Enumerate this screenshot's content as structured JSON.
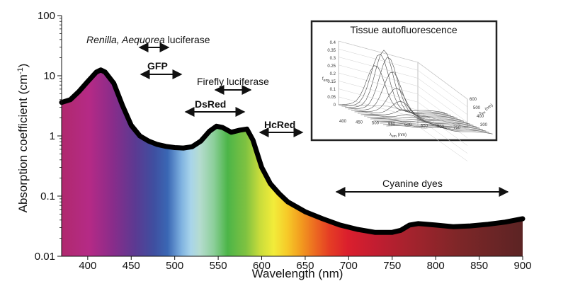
{
  "chart_data": {
    "type": "line",
    "xlabel": "Wavelength (nm)",
    "ylabel": "Absorption coefficient (cm",
    "ylabel_sup": "-1",
    "ylabel_tail": ")",
    "xlim": [
      370,
      900
    ],
    "ylim": [
      0.01,
      100
    ],
    "yscale": "log",
    "x_ticks": [
      400,
      450,
      500,
      550,
      600,
      650,
      700,
      750,
      800,
      850,
      900
    ],
    "y_ticks": [
      {
        "value": 0.01,
        "label": "0.01"
      },
      {
        "value": 0.1,
        "label": "0.1"
      },
      {
        "value": 1,
        "label": "1"
      },
      {
        "value": 10,
        "label": "10"
      },
      {
        "value": 100,
        "label": "100"
      }
    ],
    "series": [
      {
        "x": [
          370,
          380,
          390,
          400,
          410,
          415,
          420,
          430,
          440,
          450,
          460,
          470,
          480,
          490,
          500,
          510,
          520,
          530,
          540,
          548,
          555,
          565,
          575,
          583,
          590,
          600,
          610,
          620,
          630,
          650,
          670,
          690,
          710,
          730,
          750,
          760,
          770,
          780,
          800,
          820,
          840,
          860,
          880,
          900
        ],
        "y": [
          3.6,
          4.0,
          5.5,
          8.0,
          11.5,
          12.5,
          11.5,
          7.5,
          3.2,
          1.5,
          1.0,
          0.82,
          0.72,
          0.67,
          0.64,
          0.63,
          0.66,
          0.82,
          1.2,
          1.45,
          1.38,
          1.15,
          1.25,
          1.3,
          0.85,
          0.3,
          0.16,
          0.11,
          0.08,
          0.055,
          0.042,
          0.033,
          0.028,
          0.025,
          0.025,
          0.027,
          0.033,
          0.035,
          0.033,
          0.031,
          0.032,
          0.034,
          0.037,
          0.042
        ]
      }
    ],
    "annotations": [
      {
        "id": "renilla",
        "label_italic": "Renilla, Aequorea",
        "label": " luciferase",
        "range": [
          460,
          495
        ]
      },
      {
        "id": "gfp",
        "label": "GFP",
        "range": [
          465,
          510
        ]
      },
      {
        "id": "firefly",
        "label": "Firefly luciferase",
        "range": [
          550,
          590
        ]
      },
      {
        "id": "dsred",
        "label": "DsRed",
        "range": [
          515,
          580
        ]
      },
      {
        "id": "hcred",
        "label": "HcRed",
        "range": [
          595,
          645
        ]
      },
      {
        "id": "cyanine",
        "label": "Cyanine dyes",
        "range": [
          690,
          880
        ]
      }
    ],
    "inset": {
      "title": "Tissue autofluorescence",
      "zlabel": "f",
      "zlabel_sub": "em",
      "zticks": [
        "0.4",
        "0.35",
        "0.3",
        "0.25",
        "0.2",
        "0.15",
        "0.1",
        "0.05",
        "0"
      ],
      "x_axis_label": "λ",
      "x_axis_sub": "em",
      "x_axis_unit": " (nm)",
      "x_ticks": [
        "400",
        "450",
        "500",
        "550",
        "600",
        "650",
        "700",
        "750"
      ],
      "y_axis_label": "λ",
      "y_axis_sub": "ex",
      "y_axis_unit": " (nm)",
      "y_ticks": [
        "300",
        "400",
        "500",
        "600"
      ]
    }
  }
}
